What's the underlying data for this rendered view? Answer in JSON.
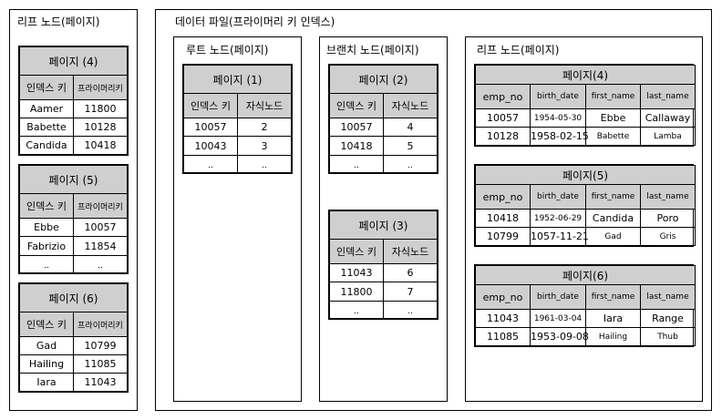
{
  "left_leaf": {
    "title": "리프 노드(페이지)",
    "pages": [
      {
        "title": "페이지 (4)",
        "headers": [
          "인덱스 키",
          "프라이머리키"
        ],
        "rows": [
          [
            "Aamer",
            "11800"
          ],
          [
            "Babette",
            "10128"
          ],
          [
            "Candida",
            "10418"
          ]
        ]
      },
      {
        "title": "페이지 (5)",
        "headers": [
          "인덱스 키",
          "프라이머리키"
        ],
        "rows": [
          [
            "Ebbe",
            "10057"
          ],
          [
            "Fabrizio",
            "11854"
          ],
          [
            "..",
            ".."
          ]
        ]
      },
      {
        "title": "페이지 (6)",
        "headers": [
          "인덱스 키",
          "프라이머리키"
        ],
        "rows": [
          [
            "Gad",
            "10799"
          ],
          [
            "Hailing",
            "11085"
          ],
          [
            "Iara",
            "11043"
          ]
        ]
      }
    ]
  },
  "data_file": {
    "title": "데이터 파일(프라이머리 키 인덱스)",
    "root": {
      "title": "루트 노드(페이지)",
      "page": {
        "title": "페이지 (1)",
        "headers": [
          "인덱스 키",
          "자식노드"
        ],
        "rows": [
          [
            "10057",
            "2"
          ],
          [
            "10043",
            "3"
          ],
          [
            "..",
            ".."
          ]
        ]
      }
    },
    "branch": {
      "title": "브랜치 노드(페이지)",
      "pages": [
        {
          "title": "페이지 (2)",
          "headers": [
            "인덱스 키",
            "자식노드"
          ],
          "rows": [
            [
              "10057",
              "4"
            ],
            [
              "10418",
              "5"
            ],
            [
              "..",
              ".."
            ]
          ]
        },
        {
          "title": "페이지 (3)",
          "headers": [
            "인덱스 키",
            "자식노드"
          ],
          "rows": [
            [
              "11043",
              "6"
            ],
            [
              "11800",
              "7"
            ],
            [
              "..",
              ".."
            ]
          ]
        }
      ]
    },
    "leaf": {
      "title": "리프 노드(페이지)",
      "pages": [
        {
          "title": "페이지(4)",
          "headers": [
            "emp_no",
            "birth_date",
            "first_name",
            "last_name"
          ],
          "rows": [
            [
              "10057",
              "1954-05-30",
              "Ebbe",
              "Callaway"
            ],
            [
              "10128",
              "1958-02-15",
              "Babette",
              "Lamba"
            ]
          ]
        },
        {
          "title": "페이지(5)",
          "headers": [
            "emp_no",
            "birth_date",
            "first_name",
            "last_name"
          ],
          "rows": [
            [
              "10418",
              "1952-06-29",
              "Candida",
              "Poro"
            ],
            [
              "10799",
              "1057-11-21",
              "Gad",
              "Gris"
            ]
          ]
        },
        {
          "title": "페이지(6)",
          "headers": [
            "emp_no",
            "birth_date",
            "first_name",
            "last_name"
          ],
          "rows": [
            [
              "11043",
              "1961-03-04",
              "Iara",
              "Range"
            ],
            [
              "11085",
              "1953-09-08",
              "Hailing",
              "Thub"
            ]
          ]
        }
      ]
    }
  }
}
